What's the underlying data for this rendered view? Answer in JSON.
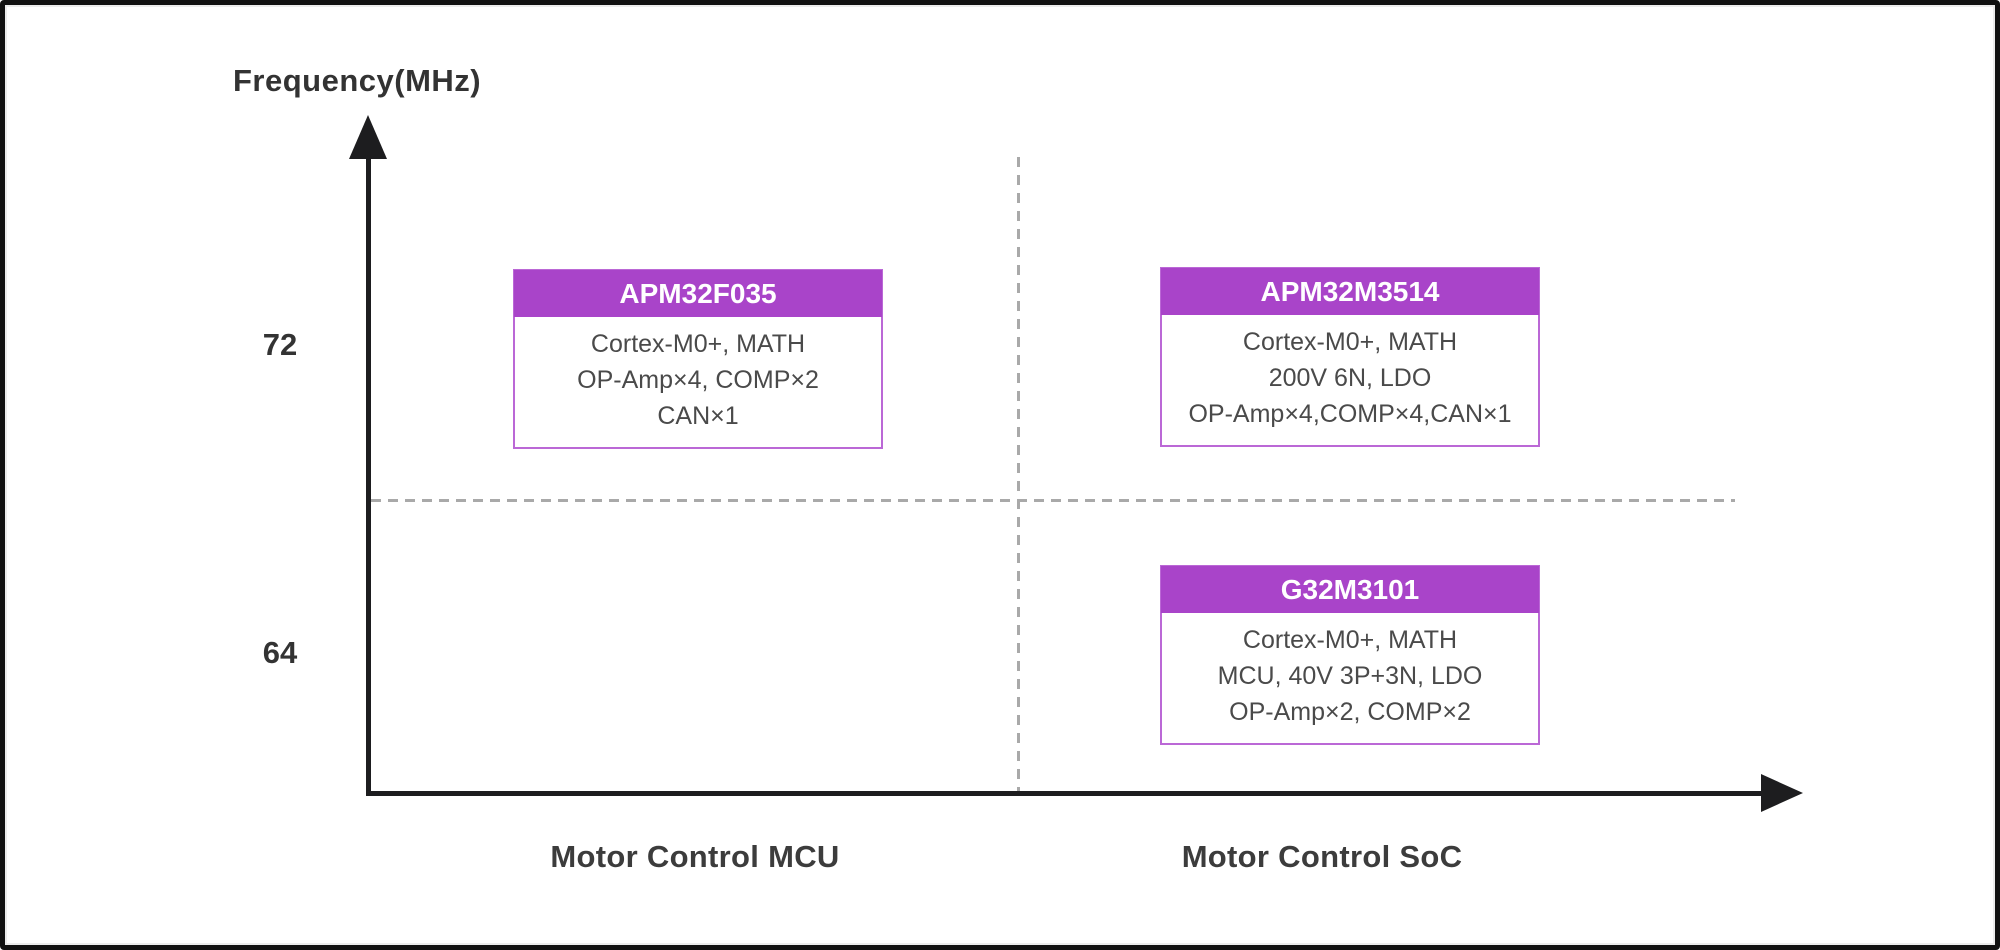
{
  "axes": {
    "y_title": "Frequency(MHz)",
    "y_ticks": [
      "72",
      "64"
    ],
    "x_categories": [
      "Motor Control MCU",
      "Motor Control SoC"
    ]
  },
  "cards": [
    {
      "title": "APM32F035",
      "lines": [
        "Cortex-M0+, MATH",
        "OP-Amp×4, COMP×2",
        "CAN×1"
      ]
    },
    {
      "title": "APM32M3514",
      "lines": [
        "Cortex-M0+, MATH",
        "200V 6N, LDO",
        "OP-Amp×4,COMP×4,CAN×1"
      ]
    },
    {
      "title": "G32M3101",
      "lines": [
        "Cortex-M0+, MATH",
        "MCU, 40V 3P+3N, LDO",
        "OP-Amp×2, COMP×2"
      ]
    }
  ],
  "colors": {
    "card_header_purple": "#a944c9",
    "card_border_purple": "#bb68d6",
    "axis_black": "#1d1d1f",
    "dashed_gray": "#a9a9a9",
    "text_dark": "#333333",
    "body_text": "#4a4a4a",
    "frame_border": "#111111"
  },
  "chart_data": {
    "type": "scatter",
    "title": "",
    "ylabel": "Frequency(MHz)",
    "xlabel": "",
    "x_categories": [
      "Motor Control MCU",
      "Motor Control SoC"
    ],
    "yticks": [
      72,
      64
    ],
    "grid": "dashed quadrant crosshair",
    "points": [
      {
        "label": "APM32F035",
        "x": "Motor Control MCU",
        "y": 72,
        "features": [
          "Cortex-M0+, MATH",
          "OP-Amp×4, COMP×2",
          "CAN×1"
        ]
      },
      {
        "label": "APM32M3514",
        "x": "Motor Control SoC",
        "y": 72,
        "features": [
          "Cortex-M0+, MATH",
          "200V 6N, LDO",
          "OP-Amp×4,COMP×4,CAN×1"
        ]
      },
      {
        "label": "G32M3101",
        "x": "Motor Control SoC",
        "y": 64,
        "features": [
          "Cortex-M0+, MATH",
          "MCU, 40V 3P+3N, LDO",
          "OP-Amp×2, COMP×2"
        ]
      }
    ]
  }
}
